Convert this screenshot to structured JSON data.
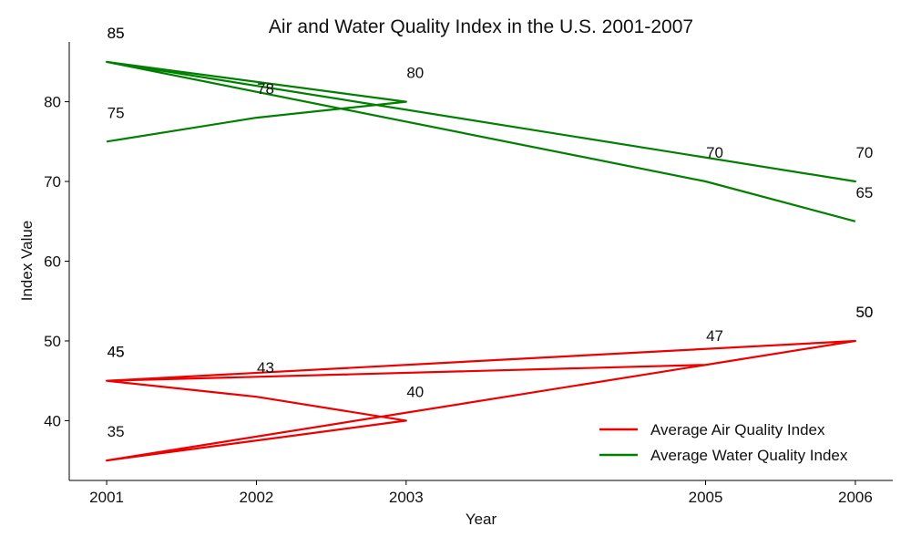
{
  "chart_data": {
    "type": "line",
    "title": "Air and Water Quality Index in the U.S. 2001-2007",
    "xlabel": "Year",
    "ylabel": "Index Value",
    "xlim": [
      2000.75,
      2006.25
    ],
    "ylim": [
      32.5,
      87.5
    ],
    "xticks": [
      2001,
      2002,
      2003,
      2005,
      2006
    ],
    "yticks": [
      40,
      50,
      60,
      70,
      80
    ],
    "grid": false,
    "legend_position": "lower-right",
    "series": [
      {
        "name": "Average Air Quality Index",
        "color": "#ee0000",
        "x": [
          2001,
          2002,
          2003,
          2001,
          2006,
          2001,
          2005,
          2006
        ],
        "y": [
          45,
          43,
          40,
          35,
          50,
          45,
          47,
          50
        ]
      },
      {
        "name": "Average Water Quality Index",
        "color": "#008000",
        "x": [
          2001,
          2002,
          2003,
          2001,
          2006,
          2001,
          2005,
          2006
        ],
        "y": [
          75,
          78,
          80,
          85,
          70,
          85,
          70,
          65
        ]
      }
    ]
  }
}
